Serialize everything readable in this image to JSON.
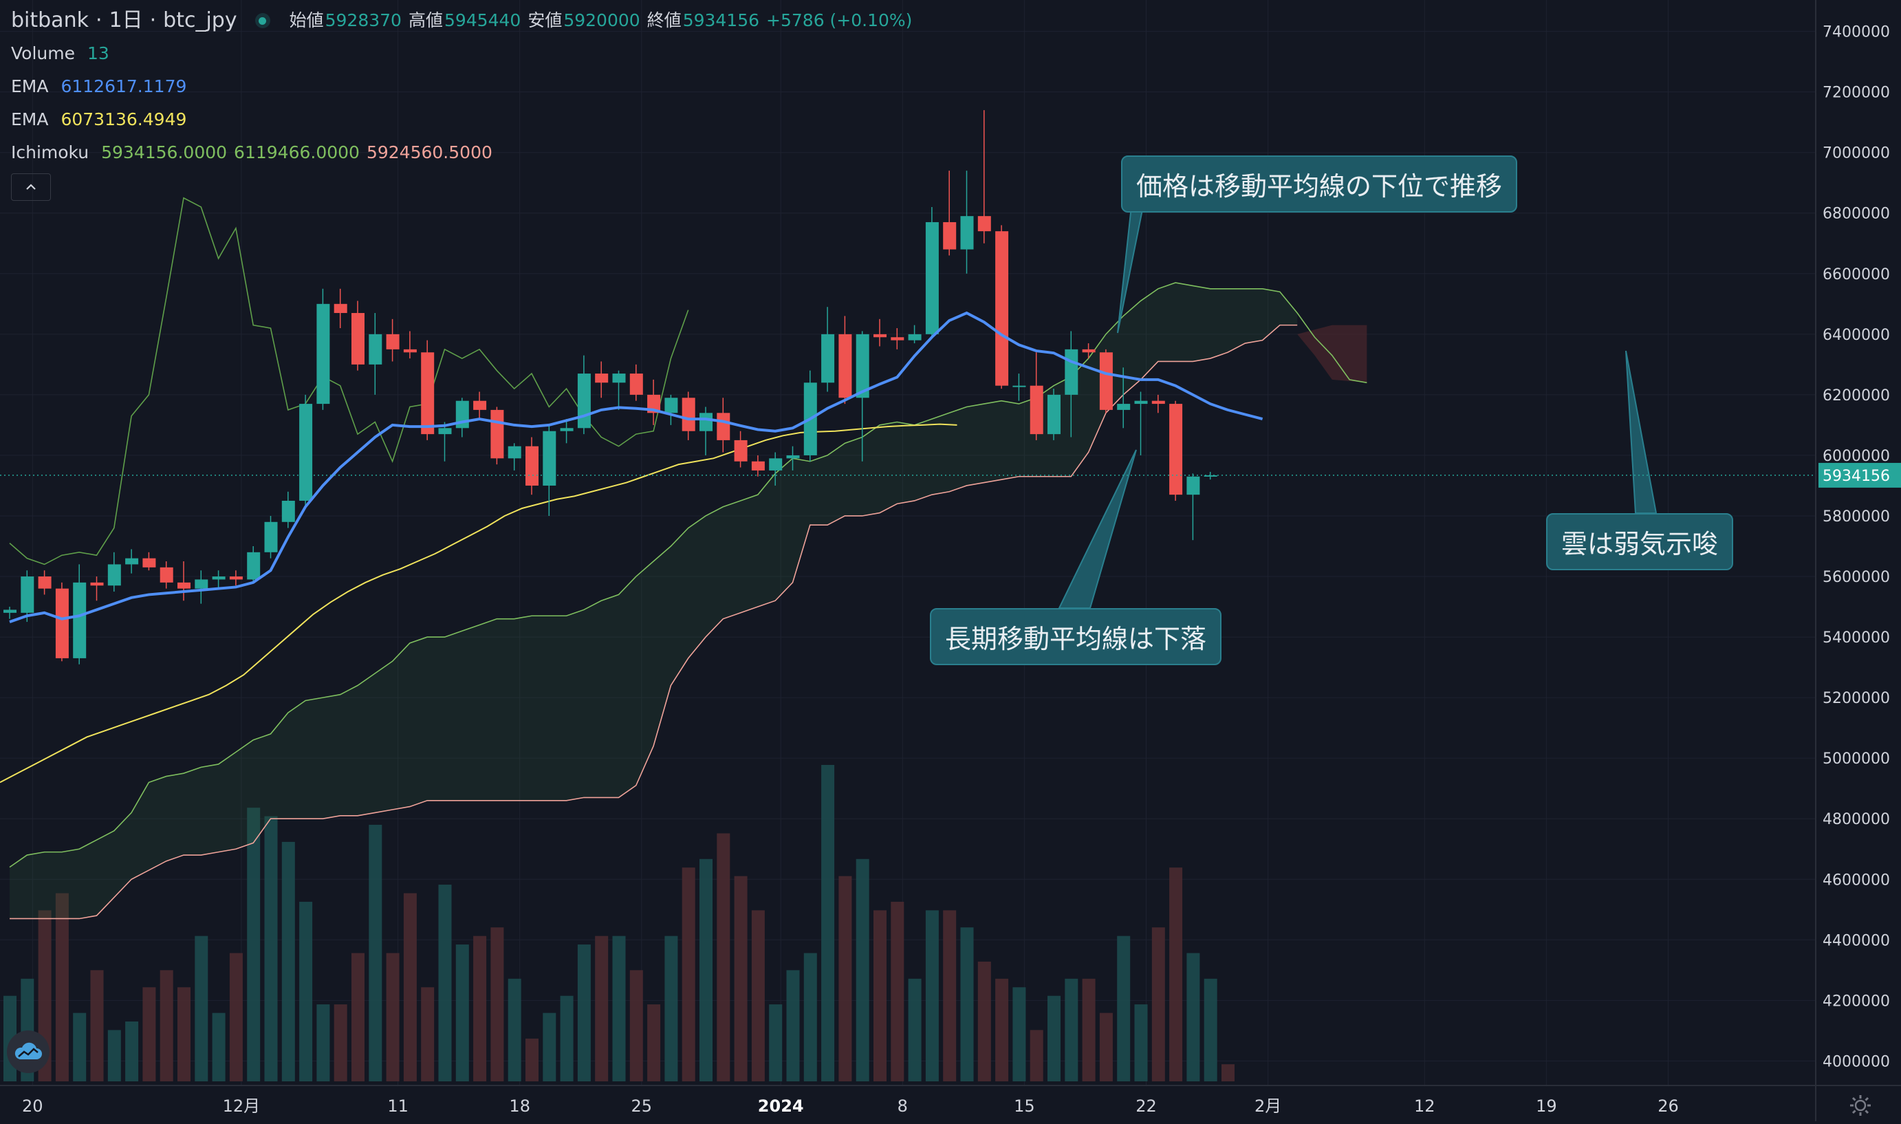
{
  "header": {
    "exchange": "bitbank",
    "interval": "1日",
    "symbol": "btc_jpy",
    "open_label": "始値",
    "open": "5928370",
    "high_label": "高値",
    "high": "5945440",
    "low_label": "安値",
    "low": "5920000",
    "close_label": "終値",
    "close": "5934156",
    "change": "+5786 (+0.10%)"
  },
  "indicators": {
    "volume": {
      "label": "Volume",
      "value": "13"
    },
    "ema_fast": {
      "label": "EMA",
      "value": "6112617.1179"
    },
    "ema_slow": {
      "label": "EMA",
      "value": "6073136.4949"
    },
    "ichimoku": {
      "label": "Ichimoku",
      "v1": "5934156.0000",
      "v2": "6119466.0000",
      "v3": "5924560.5000"
    }
  },
  "annotations": {
    "price_below_ma": "価格は移動平均線の下位で推移",
    "long_ma_falling": "長期移動平均線は下落",
    "cloud_bearish": "雲は弱気示唆"
  },
  "price_label": "5934156",
  "colors": {
    "up": "#26a69a",
    "down": "#ef5350",
    "ema_fast": "#4f8ff7",
    "ema_slow": "#f0e35c",
    "span_a": "#7fbf5f",
    "span_b": "#f0a39a",
    "chikou": "#5f9f4a",
    "background": "#131722"
  },
  "icons": {
    "logo": "cloud-icon",
    "settings": "gear-icon",
    "collapse": "chevron-up-icon"
  },
  "chart_data": {
    "type": "candlestick",
    "y_axis_ticks": [
      "7400000",
      "7200000",
      "7000000",
      "6800000",
      "6600000",
      "6400000",
      "6200000",
      "6000000",
      "5800000",
      "5600000",
      "5400000",
      "5200000",
      "5000000",
      "4800000",
      "4600000",
      "4400000",
      "4200000",
      "4000000"
    ],
    "x_axis_ticks": [
      "20",
      "12月",
      "11",
      "18",
      "25",
      "2024",
      "8",
      "15",
      "22",
      "2月",
      "12",
      "19",
      "26"
    ],
    "ylim": [
      3960000,
      7440000
    ],
    "candles": [
      [
        5480000,
        5500000,
        5460000,
        5490000
      ],
      [
        5480000,
        5620000,
        5450000,
        5600000
      ],
      [
        5600000,
        5620000,
        5540000,
        5560000
      ],
      [
        5560000,
        5580000,
        5320000,
        5330000
      ],
      [
        5330000,
        5640000,
        5310000,
        5580000
      ],
      [
        5580000,
        5600000,
        5520000,
        5570000
      ],
      [
        5570000,
        5680000,
        5550000,
        5640000
      ],
      [
        5640000,
        5690000,
        5610000,
        5660000
      ],
      [
        5660000,
        5680000,
        5620000,
        5630000
      ],
      [
        5630000,
        5650000,
        5560000,
        5580000
      ],
      [
        5580000,
        5650000,
        5520000,
        5560000
      ],
      [
        5560000,
        5620000,
        5510000,
        5590000
      ],
      [
        5590000,
        5620000,
        5560000,
        5600000
      ],
      [
        5600000,
        5620000,
        5570000,
        5590000
      ],
      [
        5590000,
        5700000,
        5580000,
        5680000
      ],
      [
        5680000,
        5800000,
        5660000,
        5780000
      ],
      [
        5780000,
        5880000,
        5760000,
        5850000
      ],
      [
        5850000,
        6200000,
        5830000,
        6170000
      ],
      [
        6170000,
        6550000,
        6150000,
        6500000
      ],
      [
        6500000,
        6550000,
        6420000,
        6470000
      ],
      [
        6470000,
        6510000,
        6280000,
        6300000
      ],
      [
        6300000,
        6470000,
        6200000,
        6400000
      ],
      [
        6400000,
        6450000,
        6310000,
        6350000
      ],
      [
        6350000,
        6410000,
        6320000,
        6340000
      ],
      [
        6340000,
        6380000,
        6050000,
        6070000
      ],
      [
        6070000,
        6110000,
        5980000,
        6090000
      ],
      [
        6090000,
        6190000,
        6060000,
        6180000
      ],
      [
        6180000,
        6210000,
        6120000,
        6150000
      ],
      [
        6150000,
        6160000,
        5970000,
        5990000
      ],
      [
        5990000,
        6040000,
        5950000,
        6030000
      ],
      [
        6030000,
        6060000,
        5870000,
        5900000
      ],
      [
        5900000,
        6100000,
        5800000,
        6080000
      ],
      [
        6080000,
        6120000,
        6040000,
        6090000
      ],
      [
        6090000,
        6330000,
        6070000,
        6270000
      ],
      [
        6270000,
        6310000,
        6190000,
        6240000
      ],
      [
        6240000,
        6280000,
        6150000,
        6270000
      ],
      [
        6270000,
        6300000,
        6180000,
        6200000
      ],
      [
        6200000,
        6250000,
        6100000,
        6140000
      ],
      [
        6140000,
        6200000,
        6100000,
        6190000
      ],
      [
        6190000,
        6210000,
        6050000,
        6080000
      ],
      [
        6080000,
        6160000,
        6000000,
        6140000
      ],
      [
        6140000,
        6190000,
        6010000,
        6050000
      ],
      [
        6050000,
        6080000,
        5960000,
        5980000
      ],
      [
        5980000,
        6000000,
        5930000,
        5950000
      ],
      [
        5950000,
        6010000,
        5900000,
        5990000
      ],
      [
        5990000,
        6030000,
        5950000,
        6000000
      ],
      [
        6000000,
        6280000,
        5980000,
        6240000
      ],
      [
        6240000,
        6490000,
        6210000,
        6400000
      ],
      [
        6400000,
        6460000,
        6170000,
        6190000
      ],
      [
        6190000,
        6410000,
        5980000,
        6400000
      ],
      [
        6400000,
        6450000,
        6360000,
        6390000
      ],
      [
        6390000,
        6420000,
        6350000,
        6380000
      ],
      [
        6380000,
        6430000,
        6370000,
        6400000
      ],
      [
        6400000,
        6820000,
        6390000,
        6770000
      ],
      [
        6770000,
        6940000,
        6660000,
        6680000
      ],
      [
        6680000,
        6940000,
        6600000,
        6790000
      ],
      [
        6790000,
        7140000,
        6700000,
        6740000
      ],
      [
        6740000,
        6760000,
        6220000,
        6230000
      ],
      [
        6230000,
        6270000,
        6180000,
        6230000
      ],
      [
        6230000,
        6340000,
        6050000,
        6070000
      ],
      [
        6070000,
        6220000,
        6050000,
        6200000
      ],
      [
        6200000,
        6410000,
        6060000,
        6350000
      ],
      [
        6350000,
        6370000,
        6320000,
        6340000
      ],
      [
        6340000,
        6350000,
        6140000,
        6150000
      ],
      [
        6150000,
        6290000,
        6090000,
        6170000
      ],
      [
        6170000,
        6210000,
        6000000,
        6180000
      ],
      [
        6180000,
        6200000,
        6140000,
        6170000
      ],
      [
        6170000,
        6180000,
        5850000,
        5870000
      ],
      [
        5870000,
        5940000,
        5720000,
        5930000
      ],
      [
        5930000,
        5945440,
        5920000,
        5934156
      ]
    ],
    "ema_fast": [
      5450000,
      5470000,
      5480000,
      5460000,
      5470000,
      5490000,
      5510000,
      5530000,
      5540000,
      5545000,
      5550000,
      5555000,
      5560000,
      5565000,
      5580000,
      5620000,
      5730000,
      5830000,
      5900000,
      5960000,
      6010000,
      6060000,
      6100000,
      6095000,
      6095000,
      6098000,
      6110000,
      6120000,
      6110000,
      6100000,
      6095000,
      6100000,
      6115000,
      6130000,
      6150000,
      6158000,
      6155000,
      6150000,
      6135000,
      6120000,
      6120000,
      6112000,
      6098000,
      6085000,
      6080000,
      6090000,
      6120000,
      6155000,
      6182000,
      6210000,
      6235000,
      6258000,
      6328000,
      6390000,
      6445000,
      6470000,
      6440000,
      6398000,
      6365000,
      6345000,
      6338000,
      6310000,
      6290000,
      6270000,
      6260000,
      6250000,
      6250000,
      6230000,
      6200000,
      6170000,
      6150000,
      6135000,
      6120000
    ],
    "ema_slow": [
      4920000,
      4950000,
      4980000,
      5010000,
      5040000,
      5070000,
      5090000,
      5110000,
      5130000,
      5150000,
      5170000,
      5190000,
      5210000,
      5240000,
      5275000,
      5325000,
      5375000,
      5425000,
      5475000,
      5515000,
      5550000,
      5580000,
      5605000,
      5625000,
      5650000,
      5675000,
      5705000,
      5735000,
      5765000,
      5800000,
      5825000,
      5840000,
      5855000,
      5865000,
      5880000,
      5895000,
      5910000,
      5930000,
      5950000,
      5970000,
      5980000,
      5990000,
      6010000,
      6030000,
      6050000,
      6065000,
      6075000,
      6078000,
      6080000,
      6085000,
      6090000,
      6095000,
      6098000,
      6100000,
      6103000,
      6100000
    ],
    "span_a": [
      4640000,
      4680000,
      4690000,
      4690000,
      4700000,
      4730000,
      4760000,
      4820000,
      4920000,
      4940000,
      4950000,
      4970000,
      4980000,
      5020000,
      5060000,
      5080000,
      5150000,
      5190000,
      5200000,
      5210000,
      5240000,
      5280000,
      5320000,
      5380000,
      5400000,
      5400000,
      5420000,
      5440000,
      5460000,
      5460000,
      5470000,
      5470000,
      5470000,
      5490000,
      5520000,
      5540000,
      5600000,
      5650000,
      5700000,
      5760000,
      5800000,
      5830000,
      5850000,
      5870000,
      5940000,
      5990000,
      5980000,
      6000000,
      6040000,
      6060000,
      6100000,
      6110000,
      6100000,
      6120000,
      6140000,
      6160000,
      6170000,
      6180000,
      6170000,
      6190000,
      6230000,
      6260000,
      6320000,
      6400000,
      6460000,
      6510000,
      6550000,
      6570000,
      6560000,
      6550000,
      6550000,
      6550000,
      6550000,
      6540000,
      6470000,
      6390000,
      6330000,
      6250000,
      6240000
    ],
    "span_b": [
      4470000,
      4470000,
      4470000,
      4470000,
      4470000,
      4480000,
      4540000,
      4600000,
      4630000,
      4660000,
      4680000,
      4680000,
      4690000,
      4700000,
      4720000,
      4800000,
      4800000,
      4800000,
      4800000,
      4810000,
      4810000,
      4820000,
      4830000,
      4840000,
      4860000,
      4860000,
      4860000,
      4860000,
      4860000,
      4860000,
      4860000,
      4860000,
      4860000,
      4870000,
      4870000,
      4870000,
      4910000,
      5040000,
      5240000,
      5330000,
      5400000,
      5460000,
      5480000,
      5500000,
      5520000,
      5580000,
      5770000,
      5770000,
      5800000,
      5800000,
      5810000,
      5840000,
      5850000,
      5870000,
      5880000,
      5900000,
      5910000,
      5920000,
      5930000,
      5930000,
      5930000,
      5930000,
      6010000,
      6140000,
      6200000,
      6250000,
      6310000,
      6310000,
      6310000,
      6320000,
      6340000,
      6370000,
      6380000,
      6430000,
      6430000
    ],
    "volume": [
      0.1,
      0.12,
      0.2,
      0.22,
      0.08,
      0.13,
      0.06,
      0.07,
      0.11,
      0.13,
      0.11,
      0.17,
      0.08,
      0.15,
      0.32,
      0.31,
      0.28,
      0.21,
      0.09,
      0.09,
      0.15,
      0.3,
      0.15,
      0.22,
      0.11,
      0.23,
      0.16,
      0.17,
      0.18,
      0.12,
      0.05,
      0.08,
      0.1,
      0.16,
      0.17,
      0.17,
      0.13,
      0.09,
      0.17,
      0.25,
      0.26,
      0.29,
      0.24,
      0.2,
      0.09,
      0.13,
      0.15,
      0.37,
      0.24,
      0.26,
      0.2,
      0.21,
      0.12,
      0.2,
      0.2,
      0.18,
      0.14,
      0.12,
      0.11,
      0.06,
      0.1,
      0.12,
      0.12,
      0.08,
      0.17,
      0.09,
      0.18,
      0.25,
      0.15,
      0.12,
      0.02
    ]
  }
}
